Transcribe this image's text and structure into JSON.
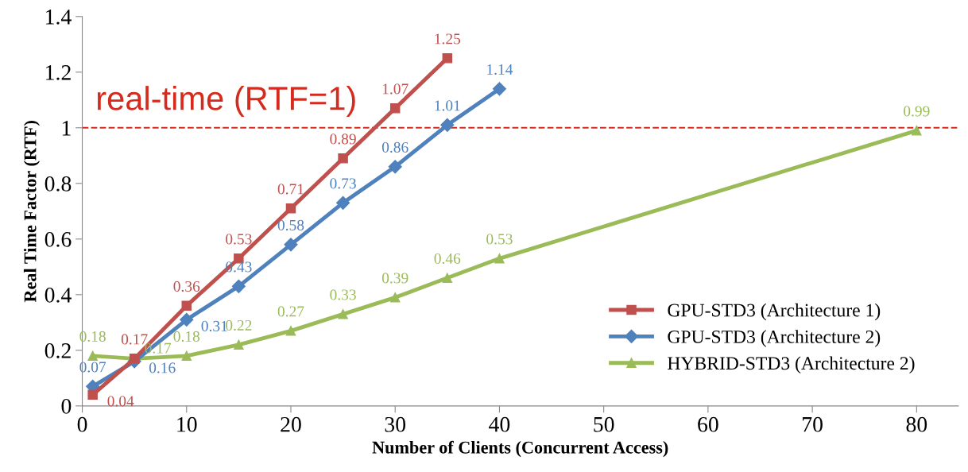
{
  "chart_data": {
    "type": "line",
    "xlabel": "Number of Clients (Concurrent Access)",
    "ylabel": "Real Time Factor (RTF)",
    "xlim": [
      0,
      84
    ],
    "xticks": [
      0,
      10,
      20,
      30,
      40,
      50,
      60,
      70,
      80
    ],
    "ylim": [
      0,
      1.4
    ],
    "yticks": [
      0,
      0.2,
      0.4,
      0.6,
      0.8,
      1,
      1.2,
      1.4
    ],
    "grid": false,
    "legend": "bottom right",
    "data_labels": true,
    "line_style": "solid",
    "ref_lines": [
      {
        "axis": "y",
        "value": 1,
        "label": "real-time (RTF=1)",
        "color": "#d52b1e",
        "line_style": "dashed"
      }
    ],
    "series": [
      {
        "name": "GPU-STD3 (Architecture 1)",
        "color": "#c0504d",
        "marker": "square",
        "x": [
          1,
          5,
          10,
          15,
          20,
          25,
          30,
          35
        ],
        "values": [
          0.04,
          0.17,
          0.36,
          0.53,
          0.71,
          0.89,
          1.07,
          1.25
        ]
      },
      {
        "name": "GPU-STD3 (Architecture 2)",
        "color": "#4f81bd",
        "marker": "diamond",
        "x": [
          1,
          5,
          10,
          15,
          20,
          25,
          30,
          35,
          40
        ],
        "values": [
          0.07,
          0.16,
          0.31,
          0.43,
          0.58,
          0.73,
          0.86,
          1.01,
          1.14
        ]
      },
      {
        "name": "HYBRID-STD3 (Architecture 2)",
        "color": "#9bbb59",
        "marker": "triangle",
        "x": [
          1,
          5,
          10,
          15,
          20,
          25,
          30,
          35,
          40,
          80
        ],
        "values": [
          0.18,
          0.17,
          0.18,
          0.22,
          0.27,
          0.33,
          0.39,
          0.46,
          0.53,
          0.99
        ]
      }
    ]
  }
}
